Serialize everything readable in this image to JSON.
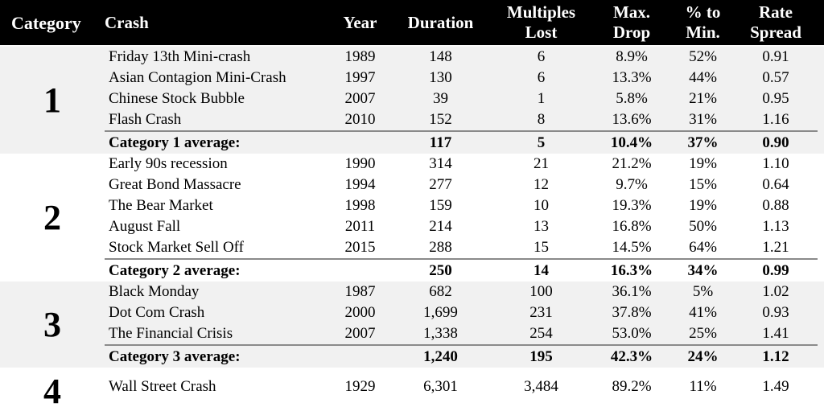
{
  "header": {
    "columns": [
      {
        "id": "category",
        "lines": [
          "Category"
        ]
      },
      {
        "id": "crash",
        "lines": [
          "Crash"
        ]
      },
      {
        "id": "year",
        "lines": [
          "Year"
        ]
      },
      {
        "id": "duration",
        "lines": [
          "Duration"
        ]
      },
      {
        "id": "multiples_lost",
        "lines": [
          "Multiples",
          "Lost"
        ]
      },
      {
        "id": "max_drop",
        "lines": [
          "Max.",
          "Drop"
        ]
      },
      {
        "id": "pct_to_min",
        "lines": [
          "% to",
          "Min."
        ]
      },
      {
        "id": "rate_spread",
        "lines": [
          "Rate",
          "Spread"
        ]
      }
    ]
  },
  "colors": {
    "header_bg": "#000000",
    "header_text": "#ffffff",
    "row_shade": "#f1f1f1",
    "row_white": "#ffffff",
    "separator": "#8a8a8a"
  },
  "chart_data": {
    "type": "table",
    "title": "",
    "columns": [
      "Category",
      "Crash",
      "Year",
      "Duration",
      "Multiples Lost",
      "Max. Drop",
      "% to Min.",
      "Rate Spread"
    ],
    "groups": [
      {
        "category": "1",
        "shaded": true,
        "rows": [
          [
            "Friday 13th Mini-crash",
            "1989",
            "148",
            "6",
            "8.9%",
            "52%",
            "0.91"
          ],
          [
            "Asian Contagion Mini-Crash",
            "1997",
            "130",
            "6",
            "13.3%",
            "44%",
            "0.57"
          ],
          [
            "Chinese Stock Bubble",
            "2007",
            "39",
            "1",
            "5.8%",
            "21%",
            "0.95"
          ],
          [
            "Flash Crash",
            "2010",
            "152",
            "8",
            "13.6%",
            "31%",
            "1.16"
          ]
        ],
        "average": [
          "Category 1 average:",
          "",
          "117",
          "5",
          "10.4%",
          "37%",
          "0.90"
        ]
      },
      {
        "category": "2",
        "shaded": false,
        "rows": [
          [
            "Early 90s recession",
            "1990",
            "314",
            "21",
            "21.2%",
            "19%",
            "1.10"
          ],
          [
            "Great Bond Massacre",
            "1994",
            "277",
            "12",
            "9.7%",
            "15%",
            "0.64"
          ],
          [
            "The Bear Market",
            "1998",
            "159",
            "10",
            "19.3%",
            "19%",
            "0.88"
          ],
          [
            "August Fall",
            "2011",
            "214",
            "13",
            "16.8%",
            "50%",
            "1.13"
          ],
          [
            "Stock Market Sell Off",
            "2015",
            "288",
            "15",
            "14.5%",
            "64%",
            "1.21"
          ]
        ],
        "average": [
          "Category 2 average:",
          "",
          "250",
          "14",
          "16.3%",
          "34%",
          "0.99"
        ]
      },
      {
        "category": "3",
        "shaded": true,
        "rows": [
          [
            "Black Monday",
            "1987",
            "682",
            "100",
            "36.1%",
            "5%",
            "1.02"
          ],
          [
            "Dot Com Crash",
            "2000",
            "1,699",
            "231",
            "37.8%",
            "41%",
            "0.93"
          ],
          [
            "The Financial Crisis",
            "2007",
            "1,338",
            "254",
            "53.0%",
            "25%",
            "1.41"
          ]
        ],
        "average": [
          "Category 3 average:",
          "",
          "1,240",
          "195",
          "42.3%",
          "24%",
          "1.12"
        ]
      },
      {
        "category": "4",
        "shaded": false,
        "rows": [
          [
            "Wall Street Crash",
            "1929",
            "6,301",
            "3,484",
            "89.2%",
            "11%",
            "1.49"
          ]
        ],
        "average": null
      }
    ]
  }
}
